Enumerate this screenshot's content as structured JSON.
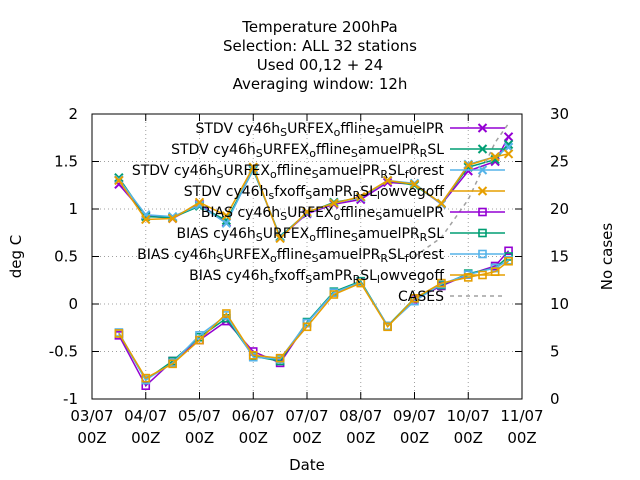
{
  "chart_data": {
    "type": "line",
    "title": [
      "Temperature 200hPa",
      "Selection: ALL      32 stations",
      "Used  00,12  + 24",
      "Averaging window: 12h"
    ],
    "xlabel": "Date",
    "ylabel": "deg C",
    "y2label": "No cases",
    "xlim": [
      0,
      16
    ],
    "ylim": [
      -1,
      2
    ],
    "y2lim": [
      0,
      30
    ],
    "x_ticks": [
      {
        "x": 0,
        "label": [
          "03/07",
          "00Z"
        ]
      },
      {
        "x": 2,
        "label": [
          "04/07",
          "00Z"
        ]
      },
      {
        "x": 4,
        "label": [
          "05/07",
          "00Z"
        ]
      },
      {
        "x": 6,
        "label": [
          "06/07",
          "00Z"
        ]
      },
      {
        "x": 8,
        "label": [
          "07/07",
          "00Z"
        ]
      },
      {
        "x": 10,
        "label": [
          "08/07",
          "00Z"
        ]
      },
      {
        "x": 12,
        "label": [
          "09/07",
          "00Z"
        ]
      },
      {
        "x": 14,
        "label": [
          "10/07",
          "00Z"
        ]
      },
      {
        "x": 16,
        "label": [
          "11/07",
          "00Z"
        ]
      }
    ],
    "y_ticks": [
      "-1",
      "-0.5",
      "0",
      "0.5",
      "1",
      "1.5",
      "2"
    ],
    "y2_ticks": [
      "0",
      "5",
      "10",
      "15",
      "20",
      "25",
      "30"
    ],
    "x": [
      1,
      2,
      3,
      4,
      5,
      6,
      7,
      8,
      9,
      10,
      11,
      12,
      13,
      14,
      15,
      15.5
    ],
    "legend_position": "top-right",
    "series": [
      {
        "legend": [
          [
            "STDV cy46h",
            ""
          ],
          [
            "S",
            "sub"
          ],
          [
            "URFEX",
            ""
          ],
          [
            "o",
            "sub"
          ],
          [
            "ffline",
            ""
          ],
          [
            "S",
            "sub"
          ],
          [
            "amuelPR",
            ""
          ]
        ],
        "color": "#9400d3",
        "marker": "x",
        "kind": "stdv",
        "values": [
          1.26,
          0.93,
          0.9,
          1.05,
          0.86,
          1.42,
          0.7,
          0.95,
          1.05,
          1.1,
          1.28,
          1.26,
          1.05,
          1.4,
          1.5,
          1.76
        ]
      },
      {
        "legend": [
          [
            "STDV cy46h",
            ""
          ],
          [
            "S",
            "sub"
          ],
          [
            "URFEX",
            ""
          ],
          [
            "o",
            "sub"
          ],
          [
            "ffline",
            ""
          ],
          [
            "S",
            "sub"
          ],
          [
            "amuelPR",
            ""
          ],
          [
            "R",
            "sub"
          ],
          [
            "SL",
            ""
          ]
        ],
        "color": "#009e73",
        "marker": "x",
        "kind": "stdv",
        "values": [
          1.33,
          0.92,
          0.91,
          1.03,
          0.88,
          1.41,
          0.71,
          0.96,
          1.07,
          1.12,
          1.3,
          1.25,
          1.06,
          1.44,
          1.52,
          1.68
        ]
      },
      {
        "legend": [
          [
            "STDV cy46h",
            ""
          ],
          [
            "S",
            "sub"
          ],
          [
            "URFEX",
            ""
          ],
          [
            "o",
            "sub"
          ],
          [
            "ffline",
            ""
          ],
          [
            "S",
            "sub"
          ],
          [
            "amuelPR",
            ""
          ],
          [
            "R",
            "sub"
          ],
          [
            "SL",
            ""
          ],
          [
            "f",
            "sub"
          ],
          [
            "orest",
            ""
          ]
        ],
        "color": "#56b4e9",
        "marker": "x",
        "kind": "stdv",
        "values": [
          1.31,
          0.94,
          0.92,
          1.04,
          0.85,
          1.42,
          0.7,
          0.96,
          1.06,
          1.12,
          1.3,
          1.27,
          1.05,
          1.47,
          1.55,
          1.65
        ]
      },
      {
        "legend": [
          [
            "STDV cy46h",
            ""
          ],
          [
            "s",
            "sub"
          ],
          [
            "fxoff",
            ""
          ],
          [
            "S",
            "sub"
          ],
          [
            "amPR",
            ""
          ],
          [
            "R",
            "sub"
          ],
          [
            "SL",
            ""
          ],
          [
            "l",
            "sub"
          ],
          [
            "owvegoff",
            ""
          ]
        ],
        "color": "#e69f00",
        "marker": "x",
        "kind": "stdv",
        "values": [
          1.3,
          0.89,
          0.9,
          1.07,
          0.93,
          1.44,
          0.69,
          0.97,
          1.06,
          1.13,
          1.3,
          1.26,
          1.06,
          1.46,
          1.55,
          1.58
        ]
      },
      {
        "legend": [
          [
            "BIAS cy46h",
            ""
          ],
          [
            "S",
            "sub"
          ],
          [
            "URFEX",
            ""
          ],
          [
            "o",
            "sub"
          ],
          [
            "ffline",
            ""
          ],
          [
            "S",
            "sub"
          ],
          [
            "amuelPR",
            ""
          ]
        ],
        "color": "#9400d3",
        "marker": "square",
        "kind": "bias",
        "values": [
          -0.33,
          -0.86,
          -0.6,
          -0.38,
          -0.18,
          -0.5,
          -0.62,
          -0.2,
          0.12,
          0.23,
          -0.23,
          0.05,
          0.19,
          0.31,
          0.4,
          0.56
        ]
      },
      {
        "legend": [
          [
            "BIAS cy46h",
            ""
          ],
          [
            "S",
            "sub"
          ],
          [
            "URFEX",
            ""
          ],
          [
            "o",
            "sub"
          ],
          [
            "ffline",
            ""
          ],
          [
            "S",
            "sub"
          ],
          [
            "amuelPR",
            ""
          ],
          [
            "R",
            "sub"
          ],
          [
            "SL",
            ""
          ]
        ],
        "color": "#009e73",
        "marker": "square",
        "kind": "bias",
        "values": [
          -0.31,
          -0.8,
          -0.6,
          -0.35,
          -0.15,
          -0.55,
          -0.6,
          -0.19,
          0.13,
          0.24,
          -0.23,
          0.06,
          0.2,
          0.32,
          0.38,
          0.5
        ]
      },
      {
        "legend": [
          [
            "BIAS cy46h",
            ""
          ],
          [
            "S",
            "sub"
          ],
          [
            "URFEX",
            ""
          ],
          [
            "o",
            "sub"
          ],
          [
            "ffline",
            ""
          ],
          [
            "S",
            "sub"
          ],
          [
            "amuelPR",
            ""
          ],
          [
            "R",
            "sub"
          ],
          [
            "SL",
            ""
          ],
          [
            "f",
            "sub"
          ],
          [
            "orest",
            ""
          ]
        ],
        "color": "#56b4e9",
        "marker": "square",
        "kind": "bias",
        "values": [
          -0.3,
          -0.8,
          -0.62,
          -0.33,
          -0.12,
          -0.56,
          -0.58,
          -0.2,
          0.12,
          0.23,
          -0.23,
          0.03,
          0.21,
          0.31,
          0.38,
          0.46
        ]
      },
      {
        "legend": [
          [
            "BIAS cy46h",
            ""
          ],
          [
            "s",
            "sub"
          ],
          [
            "fxoff",
            ""
          ],
          [
            "S",
            "sub"
          ],
          [
            "amPR",
            ""
          ],
          [
            "R",
            "sub"
          ],
          [
            "SL",
            ""
          ],
          [
            "l",
            "sub"
          ],
          [
            "owvegoff",
            ""
          ]
        ],
        "color": "#e69f00",
        "marker": "square",
        "kind": "bias",
        "values": [
          -0.31,
          -0.78,
          -0.63,
          -0.38,
          -0.1,
          -0.54,
          -0.57,
          -0.24,
          0.1,
          0.22,
          -0.24,
          0.06,
          0.22,
          0.28,
          0.34,
          0.45
        ]
      },
      {
        "legend": [
          [
            "CASES",
            ""
          ]
        ],
        "color": "#a0a0a0",
        "marker": "none",
        "kind": "cases",
        "axis": "y2",
        "values": [
          null,
          null,
          null,
          null,
          null,
          null,
          null,
          null,
          null,
          null,
          null,
          15,
          17,
          21,
          27,
          29
        ]
      }
    ]
  }
}
